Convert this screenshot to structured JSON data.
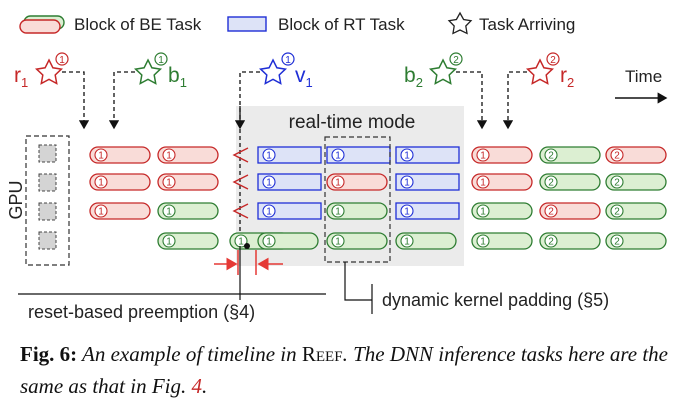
{
  "legend": {
    "be_label": "Block of BE Task",
    "rt_label": "Block of RT Task",
    "arriving_label": "Task Arriving"
  },
  "arrivals": {
    "r1": {
      "name": "r",
      "sub": "1",
      "badge": "1"
    },
    "b1": {
      "name": "b",
      "sub": "1",
      "badge": "1"
    },
    "v1": {
      "name": "v",
      "sub": "1",
      "badge": "1"
    },
    "b2": {
      "name": "b",
      "sub": "2",
      "badge": "2"
    },
    "r2": {
      "name": "r",
      "sub": "2",
      "badge": "2"
    }
  },
  "time_label": "Time",
  "gpu_label": "GPU",
  "realtime_label": "real-time mode",
  "reset_label": "reset-based preemption (§4)",
  "padding_label": "dynamic kernel padding (§5)",
  "colors": {
    "be_red_fill": "#f9dcd8",
    "be_red_stroke": "#c62828",
    "be_green_fill": "#dcefd2",
    "be_green_stroke": "#2e7d32",
    "rt_fill": "#dde3f7",
    "rt_stroke": "#1f2fd6",
    "caption_ref": "#c62828",
    "highlight": "#ebebeb"
  },
  "timeline": {
    "gpu_slots": 4,
    "rows": [
      [
        [
          "red",
          "1"
        ],
        [
          "red",
          "1"
        ],
        [
          "red",
          "1"
        ],
        [
          "cut",
          ""
        ],
        [
          "rt",
          "1"
        ],
        [
          "rt",
          "1"
        ],
        [
          "rt",
          "1"
        ],
        [
          "red",
          "1"
        ],
        [
          "green",
          "2"
        ],
        [
          "red",
          "2"
        ]
      ],
      [
        [
          "red",
          "1"
        ],
        [
          "red",
          "1"
        ],
        [
          "red",
          "1"
        ],
        [
          "cut",
          ""
        ],
        [
          "rt",
          "1"
        ],
        [
          "red",
          "1"
        ],
        [
          "rt",
          "1"
        ],
        [
          "red",
          "1"
        ],
        [
          "green",
          "2"
        ],
        [
          "green",
          "2"
        ]
      ],
      [
        [
          "red",
          "1"
        ],
        [
          "green",
          "1"
        ],
        [
          "green",
          "1"
        ],
        [
          "cut",
          ""
        ],
        [
          "rt",
          "1"
        ],
        [
          "green",
          "1"
        ],
        [
          "rt",
          "1"
        ],
        [
          "green",
          "1"
        ],
        [
          "red",
          "2"
        ],
        [
          "green",
          "2"
        ]
      ],
      [
        [
          "empty",
          ""
        ],
        [
          "green",
          "1"
        ],
        [
          "green",
          "1"
        ],
        [
          "green",
          "1"
        ],
        [
          "green",
          "1"
        ],
        [
          "green",
          "1"
        ],
        [
          "green",
          "1"
        ],
        [
          "green",
          "1"
        ],
        [
          "green",
          "2"
        ],
        [
          "green",
          "2"
        ]
      ]
    ]
  },
  "caption": {
    "fig": "Fig. 6:",
    "text_a": " An example of timeline in ",
    "reef": "Reef",
    "text_b": ". The DNN inference tasks here are the same as that in Fig. ",
    "ref": "4",
    "text_c": "."
  }
}
